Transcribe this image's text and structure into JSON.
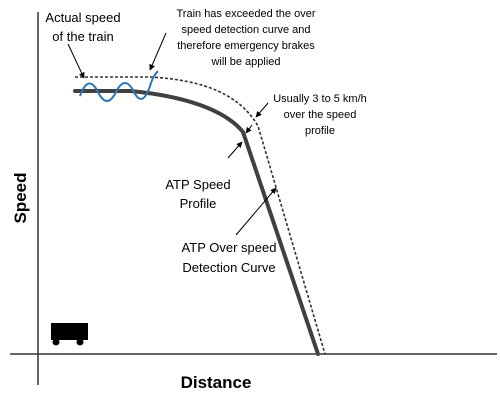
{
  "axes": {
    "x_label": "Distance",
    "y_label": "Speed"
  },
  "annotations": {
    "actual_speed": [
      "Actual speed",
      "of the train"
    ],
    "exceeded_note": [
      "Train has exceeded the over",
      "speed detection curve and",
      "therefore emergency brakes",
      "will be applied"
    ],
    "margin_note": [
      "Usually 3 to 5 km/h",
      "over the speed",
      "profile"
    ],
    "speed_profile": [
      "ATP Speed",
      "Profile"
    ],
    "detection_curve": [
      "ATP Over speed",
      "Detection Curve"
    ]
  },
  "icons": {
    "train": "train-wagon-icon"
  },
  "colors": {
    "actual_speed_wave": "#2e75b6",
    "speed_profile": "#404040",
    "detection_curve": "#303030",
    "axis": "#333333"
  }
}
